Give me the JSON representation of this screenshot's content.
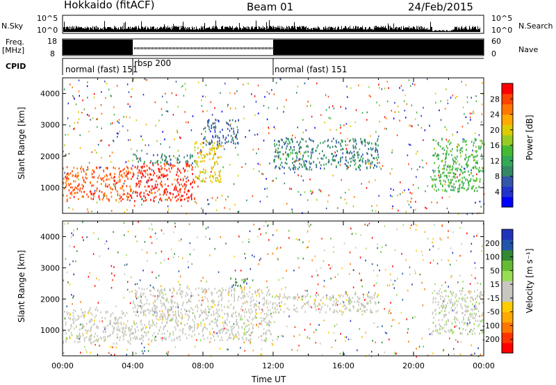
{
  "header": {
    "station": "Hokkaido (fitACF)",
    "beam": "Beam 01",
    "date": "24/Feb/2015"
  },
  "side_labels": {
    "nsky": "N.Sky",
    "freq": "Freq.",
    "mhz": "[MHz]",
    "cpid": "CPID",
    "nsearch": "N.Search",
    "nave": "Nave"
  },
  "noise_panel": {
    "left_ticks": [
      "10^5",
      "10^0"
    ],
    "right_ticks": [
      "10^5",
      "10^0"
    ]
  },
  "freq_panel": {
    "left_ticks": [
      "18",
      "8"
    ],
    "right_ticks": [
      "60",
      "0"
    ]
  },
  "cpid_segments": [
    {
      "label": "normal (fast) 151",
      "start_hour": 0,
      "end_hour": 4
    },
    {
      "label": "rbsp 200",
      "start_hour": 4,
      "end_hour": 12
    },
    {
      "label": "normal (fast) 151",
      "start_hour": 12,
      "end_hour": 24
    }
  ],
  "x_axis": {
    "label": "Time UT",
    "ticks": [
      "00:00",
      "04:00",
      "08:00",
      "12:00",
      "16:00",
      "20:00",
      "00:00"
    ],
    "range_hours": [
      0,
      24
    ]
  },
  "power_panel": {
    "ylabel": "Slant Range [km]",
    "yticks": [
      "1000",
      "2000",
      "3000",
      "4000"
    ],
    "ylim": [
      180,
      4500
    ],
    "colorbar": {
      "label": "Power [dB]",
      "ticks": [
        "4",
        "8",
        "12",
        "16",
        "20",
        "24",
        "28"
      ],
      "colors": [
        "#0000ff",
        "#2233cc",
        "#3355aa",
        "#338866",
        "#33aa55",
        "#44bb33",
        "#99cc22",
        "#ddcc00",
        "#ffaa00",
        "#ff7700",
        "#ff4400",
        "#ff0000"
      ]
    }
  },
  "velocity_panel": {
    "ylabel": "Slant Range [km]",
    "yticks": [
      "1000",
      "2000",
      "3000",
      "4000"
    ],
    "ylim": [
      180,
      4500
    ],
    "colorbar": {
      "label": "Velocity [m s⁻¹]",
      "ticks": [
        "200",
        "100",
        "50",
        "15",
        "-15",
        "-50",
        "-100",
        "-200"
      ],
      "colors": [
        "#2233bb",
        "#2255aa",
        "#338833",
        "#66bb33",
        "#99dd55",
        "#c8c8c0",
        "#c8c8c0",
        "#ffcc00",
        "#ffaa00",
        "#ff7700",
        "#ff3300",
        "#ff0000"
      ]
    }
  },
  "chart_data": {
    "type": "heatmap",
    "title": "Hokkaido (fitACF)",
    "xlabel": "Time UT",
    "ylabel": "Slant Range [km]",
    "x_range": [
      0,
      24
    ],
    "y_range": [
      180,
      4500
    ],
    "power_regions": [
      {
        "t0": 0.0,
        "t1": 4.0,
        "r0": 600,
        "r1": 1700,
        "power": 26
      },
      {
        "t0": 4.0,
        "t1": 7.5,
        "r0": 600,
        "r1": 1800,
        "power": 28
      },
      {
        "t0": 4.0,
        "t1": 7.5,
        "r0": 1800,
        "r1": 2100,
        "power": 10
      },
      {
        "t0": 7.5,
        "t1": 9.0,
        "r0": 1200,
        "r1": 2500,
        "power": 20
      },
      {
        "t0": 8.0,
        "t1": 10.0,
        "r0": 2400,
        "r1": 3200,
        "power": 8
      },
      {
        "t0": 12.0,
        "t1": 18.0,
        "r0": 1600,
        "r1": 2600,
        "power": 10
      },
      {
        "t0": 21.0,
        "t1": 24.0,
        "r0": 900,
        "r1": 2600,
        "power": 14
      }
    ],
    "velocity_regions": [
      {
        "t0": 0.0,
        "t1": 4.0,
        "r0": 600,
        "r1": 1700,
        "velocity": 0
      },
      {
        "t0": 4.0,
        "t1": 12.0,
        "r0": 700,
        "r1": 2400,
        "velocity": 0
      },
      {
        "t0": 9.5,
        "t1": 10.5,
        "r0": 2400,
        "r1": 2700,
        "velocity": 150
      },
      {
        "t0": 12.0,
        "t1": 18.0,
        "r0": 1600,
        "r1": 2200,
        "velocity": 0
      },
      {
        "t0": 21.0,
        "t1": 24.0,
        "r0": 900,
        "r1": 2300,
        "velocity": 20
      }
    ]
  }
}
